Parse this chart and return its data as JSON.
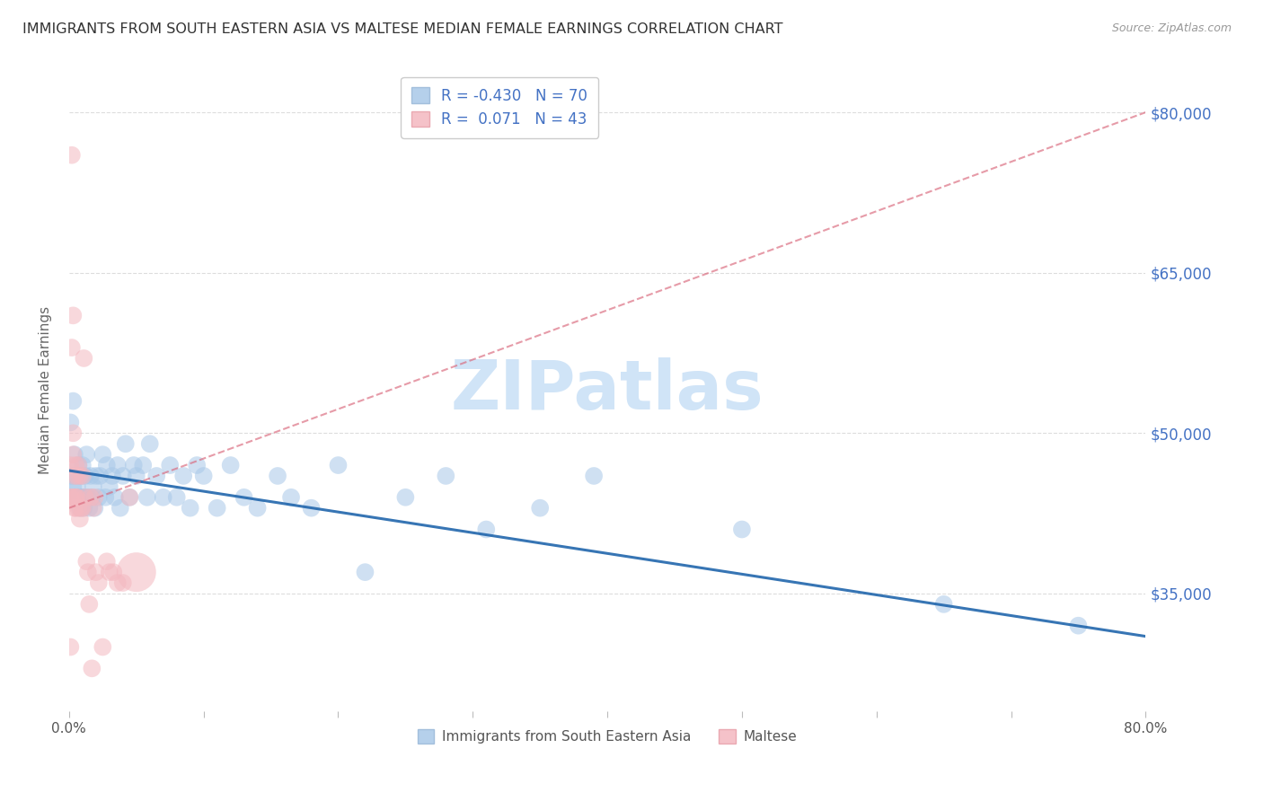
{
  "title": "IMMIGRANTS FROM SOUTH EASTERN ASIA VS MALTESE MEDIAN FEMALE EARNINGS CORRELATION CHART",
  "source": "Source: ZipAtlas.com",
  "ylabel": "Median Female Earnings",
  "y_ticks": [
    35000,
    50000,
    65000,
    80000
  ],
  "y_tick_labels": [
    "$35,000",
    "$50,000",
    "$65,000",
    "$80,000"
  ],
  "xlim": [
    0.0,
    0.8
  ],
  "ylim": [
    24000,
    84000
  ],
  "legend_entries": [
    {
      "label": "Immigrants from South Eastern Asia",
      "R": "-0.430",
      "N": "70",
      "color": "#a8c8e8"
    },
    {
      "label": "Maltese",
      "R": "0.071",
      "N": "43",
      "color": "#f4b8c0"
    }
  ],
  "blue_scatter_x": [
    0.001,
    0.002,
    0.003,
    0.003,
    0.004,
    0.005,
    0.005,
    0.006,
    0.007,
    0.007,
    0.008,
    0.008,
    0.009,
    0.009,
    0.01,
    0.01,
    0.011,
    0.012,
    0.012,
    0.013,
    0.014,
    0.015,
    0.016,
    0.017,
    0.018,
    0.019,
    0.02,
    0.022,
    0.023,
    0.025,
    0.027,
    0.028,
    0.03,
    0.032,
    0.034,
    0.036,
    0.038,
    0.04,
    0.042,
    0.045,
    0.048,
    0.05,
    0.055,
    0.058,
    0.06,
    0.065,
    0.07,
    0.075,
    0.08,
    0.085,
    0.09,
    0.095,
    0.1,
    0.11,
    0.12,
    0.13,
    0.14,
    0.155,
    0.165,
    0.18,
    0.2,
    0.22,
    0.25,
    0.28,
    0.31,
    0.35,
    0.39,
    0.5,
    0.65,
    0.75
  ],
  "blue_scatter_y": [
    51000,
    46000,
    45000,
    53000,
    48000,
    44000,
    46000,
    45000,
    47000,
    44000,
    46000,
    43000,
    44000,
    46000,
    44000,
    47000,
    43000,
    46000,
    44000,
    48000,
    44000,
    43000,
    46000,
    44000,
    45000,
    43000,
    46000,
    44000,
    46000,
    48000,
    44000,
    47000,
    45000,
    46000,
    44000,
    47000,
    43000,
    46000,
    49000,
    44000,
    47000,
    46000,
    47000,
    44000,
    49000,
    46000,
    44000,
    47000,
    44000,
    46000,
    43000,
    47000,
    46000,
    43000,
    47000,
    44000,
    43000,
    46000,
    44000,
    43000,
    47000,
    37000,
    44000,
    46000,
    41000,
    43000,
    46000,
    41000,
    34000,
    32000
  ],
  "blue_scatter_sizes": [
    40,
    40,
    40,
    40,
    40,
    40,
    40,
    40,
    40,
    40,
    40,
    40,
    40,
    40,
    40,
    40,
    40,
    40,
    40,
    40,
    40,
    40,
    40,
    40,
    40,
    40,
    40,
    40,
    40,
    40,
    40,
    40,
    40,
    40,
    40,
    40,
    40,
    40,
    40,
    40,
    40,
    40,
    40,
    40,
    40,
    40,
    40,
    40,
    40,
    40,
    40,
    40,
    40,
    40,
    40,
    40,
    40,
    40,
    40,
    40,
    40,
    40,
    40,
    40,
    40,
    40,
    40,
    40,
    40,
    40
  ],
  "pink_scatter_x": [
    0.001,
    0.001,
    0.001,
    0.002,
    0.002,
    0.002,
    0.003,
    0.003,
    0.003,
    0.004,
    0.004,
    0.004,
    0.005,
    0.005,
    0.005,
    0.006,
    0.006,
    0.007,
    0.007,
    0.008,
    0.008,
    0.009,
    0.01,
    0.01,
    0.011,
    0.012,
    0.013,
    0.014,
    0.015,
    0.016,
    0.017,
    0.018,
    0.019,
    0.02,
    0.022,
    0.025,
    0.028,
    0.03,
    0.033,
    0.036,
    0.04,
    0.045,
    0.05
  ],
  "pink_scatter_y": [
    44000,
    47000,
    30000,
    76000,
    58000,
    44000,
    61000,
    50000,
    48000,
    46000,
    44000,
    43000,
    47000,
    44000,
    43000,
    46000,
    44000,
    47000,
    43000,
    46000,
    42000,
    43000,
    46000,
    43000,
    57000,
    44000,
    38000,
    37000,
    34000,
    44000,
    28000,
    43000,
    44000,
    37000,
    36000,
    30000,
    38000,
    37000,
    37000,
    36000,
    36000,
    44000,
    37000
  ],
  "pink_scatter_sizes": [
    40,
    40,
    40,
    40,
    40,
    40,
    40,
    40,
    40,
    40,
    40,
    40,
    40,
    40,
    40,
    40,
    40,
    40,
    40,
    40,
    40,
    40,
    40,
    40,
    40,
    40,
    40,
    40,
    40,
    40,
    40,
    40,
    40,
    40,
    40,
    40,
    40,
    40,
    40,
    40,
    40,
    40,
    200
  ],
  "blue_line_x0": 0.0,
  "blue_line_x1": 0.8,
  "blue_line_y0": 46500,
  "blue_line_y1": 31000,
  "pink_line_x0": 0.0,
  "pink_line_x1": 0.8,
  "pink_line_y0": 43000,
  "pink_line_y1": 80000,
  "scatter_alpha": 0.55,
  "grid_color": "#dddddd",
  "background_color": "#ffffff",
  "title_color": "#333333",
  "axis_label_color": "#666666",
  "right_tick_color": "#4472c4",
  "watermark_text": "ZIPatlas",
  "watermark_color": "#d0e4f7",
  "watermark_fontsize": 55
}
